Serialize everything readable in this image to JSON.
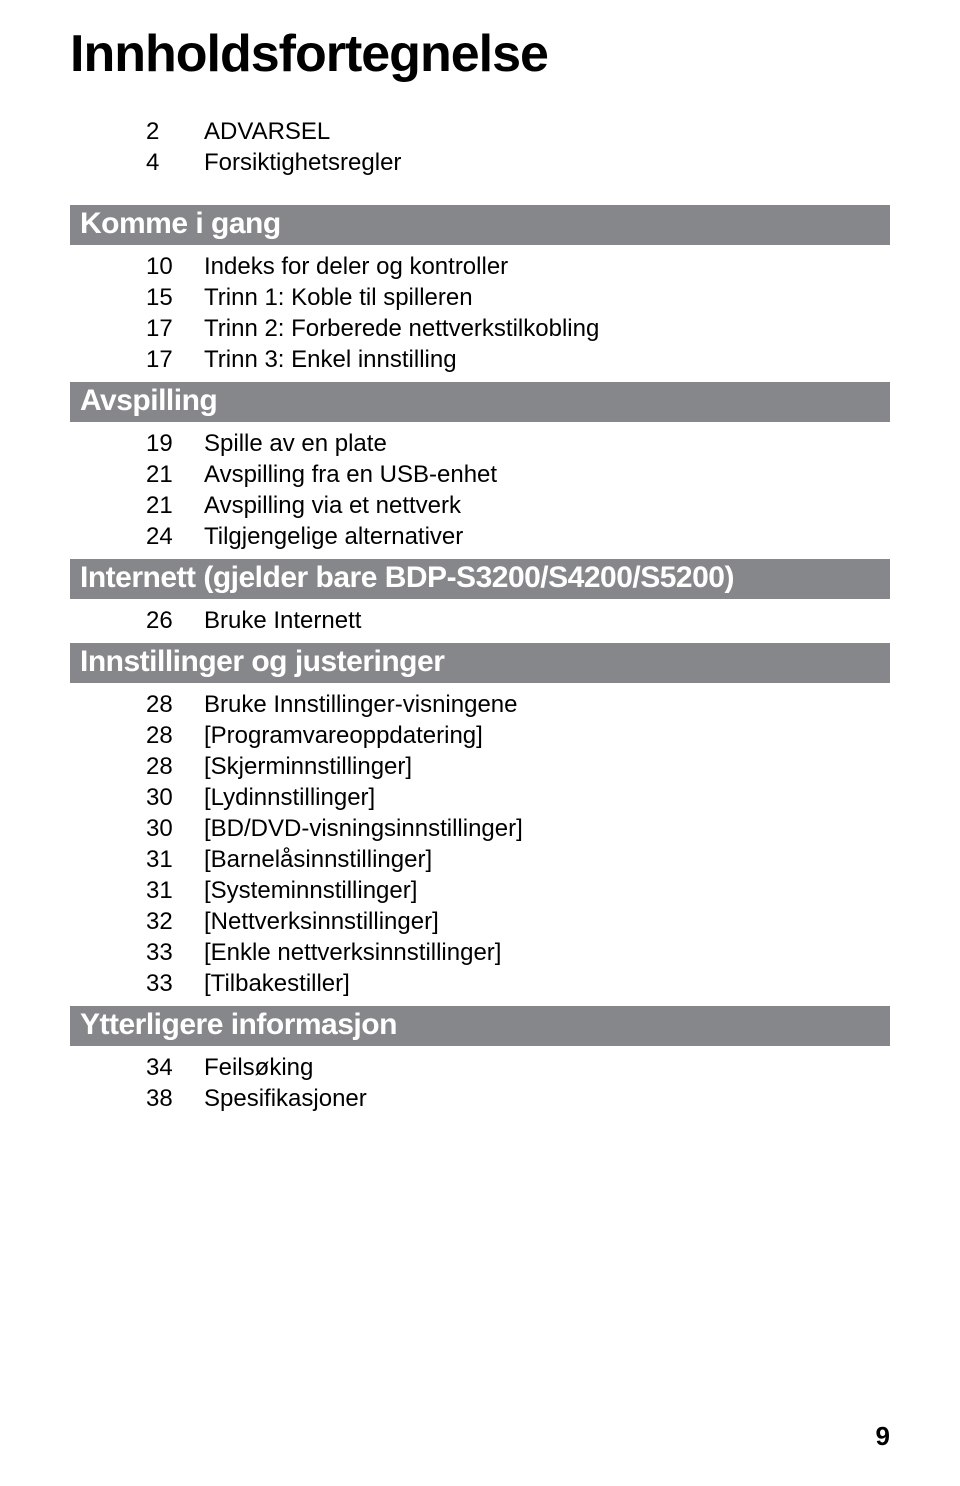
{
  "title": {
    "text": "Innholdsfortegnelse",
    "fontsize": 52
  },
  "section_bar": {
    "fontsize": 30,
    "bg_color": "#86878a",
    "text_color": "#ffffff"
  },
  "item_style": {
    "fontsize": 24,
    "text_color": "#000000"
  },
  "intro_items": [
    {
      "page": "2",
      "label": "ADVARSEL"
    },
    {
      "page": "4",
      "label": "Forsiktighetsregler"
    }
  ],
  "sections": [
    {
      "heading": "Komme i gang",
      "items": [
        {
          "page": "10",
          "label": "Indeks for deler og kontroller"
        },
        {
          "page": "15",
          "label": "Trinn 1: Koble til spilleren"
        },
        {
          "page": "17",
          "label": "Trinn 2: Forberede nettverkstilkobling"
        },
        {
          "page": "17",
          "label": "Trinn 3: Enkel innstilling"
        }
      ]
    },
    {
      "heading": "Avspilling",
      "items": [
        {
          "page": "19",
          "label": "Spille av en plate"
        },
        {
          "page": "21",
          "label": "Avspilling fra en USB-enhet"
        },
        {
          "page": "21",
          "label": "Avspilling via et nettverk"
        },
        {
          "page": "24",
          "label": "Tilgjengelige alternativer"
        }
      ]
    },
    {
      "heading": "Internett (gjelder bare BDP-S3200/S4200/S5200)",
      "items": [
        {
          "page": "26",
          "label": "Bruke Internett"
        }
      ]
    },
    {
      "heading": "Innstillinger og justeringer",
      "items": [
        {
          "page": "28",
          "label": "Bruke Innstillinger-visningene"
        },
        {
          "page": "28",
          "label": "[Programvareoppdatering]"
        },
        {
          "page": "28",
          "label": "[Skjerminnstillinger]"
        },
        {
          "page": "30",
          "label": "[Lydinnstillinger]"
        },
        {
          "page": "30",
          "label": "[BD/DVD-visningsinnstillinger]"
        },
        {
          "page": "31",
          "label": "[Barnelåsinnstillinger]"
        },
        {
          "page": "31",
          "label": "[Systeminnstillinger]"
        },
        {
          "page": "32",
          "label": "[Nettverksinnstillinger]"
        },
        {
          "page": "33",
          "label": "[Enkle nettverksinnstillinger]"
        },
        {
          "page": "33",
          "label": "[Tilbakestiller]"
        }
      ]
    },
    {
      "heading": "Ytterligere informasjon",
      "items": [
        {
          "page": "34",
          "label": "Feilsøking"
        },
        {
          "page": "38",
          "label": "Spesifikasjoner"
        }
      ]
    }
  ],
  "page_number": {
    "value": "9",
    "fontsize": 26
  }
}
